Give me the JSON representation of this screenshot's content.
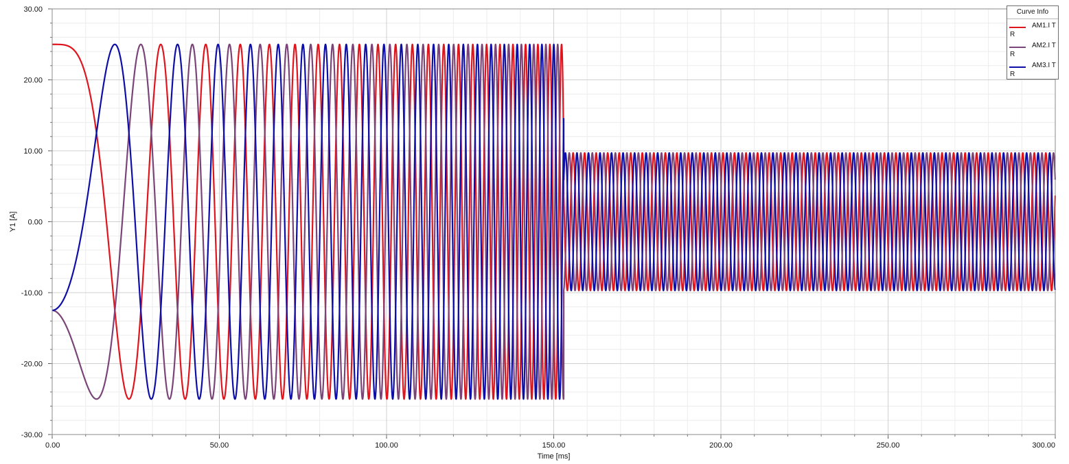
{
  "chart_data": {
    "type": "line",
    "title": "",
    "xlabel": "Time [ms]",
    "ylabel": "Y1 [A]",
    "xlim": [
      0,
      300
    ],
    "ylim": [
      -30,
      30
    ],
    "x_ticks": [
      "0.00",
      "50.00",
      "100.00",
      "150.00",
      "200.00",
      "250.00",
      "300.00"
    ],
    "y_ticks": [
      "-30.00",
      "-20.00",
      "-10.00",
      "0.00",
      "10.00",
      "20.00",
      "30.00"
    ],
    "grid": true,
    "legend": {
      "title": "Curve Info",
      "placement": "top-right",
      "entries": [
        "AM1.I\nTR",
        "AM2.I\nTR",
        "AM3.I\nTR"
      ]
    },
    "series": [
      {
        "label": "AM1.I TR",
        "color": "#e0141c",
        "amplitude_segments": [
          {
            "t_start": 0,
            "t_end": 153,
            "amplitude_A": 25
          },
          {
            "t_start": 153,
            "t_end": 300,
            "amplitude_A": 9.7
          }
        ],
        "frequency_ramp_Hz": [
          {
            "t_ms": 0,
            "f_Hz": 0
          },
          {
            "t_ms": 153,
            "f_Hz": 290
          },
          {
            "t_ms": 300,
            "f_Hz": 290
          }
        ],
        "phase_deg": 0
      },
      {
        "label": "AM2.I TR",
        "color": "#7a4478",
        "amplitude_segments": [
          {
            "t_start": 0,
            "t_end": 153,
            "amplitude_A": 25
          },
          {
            "t_start": 153,
            "t_end": 300,
            "amplitude_A": 9.7
          }
        ],
        "frequency_ramp_Hz": [
          {
            "t_ms": 0,
            "f_Hz": 0
          },
          {
            "t_ms": 153,
            "f_Hz": 290
          },
          {
            "t_ms": 300,
            "f_Hz": 290
          }
        ],
        "phase_deg": 120
      },
      {
        "label": "AM3.I TR",
        "color": "#0d0da8",
        "amplitude_segments": [
          {
            "t_start": 0,
            "t_end": 153,
            "amplitude_A": 25
          },
          {
            "t_start": 153,
            "t_end": 300,
            "amplitude_A": 9.7
          }
        ],
        "frequency_ramp_Hz": [
          {
            "t_ms": 0,
            "f_Hz": 0
          },
          {
            "t_ms": 153,
            "f_Hz": 290
          },
          {
            "t_ms": 300,
            "f_Hz": 290
          }
        ],
        "phase_deg": 240
      }
    ]
  }
}
